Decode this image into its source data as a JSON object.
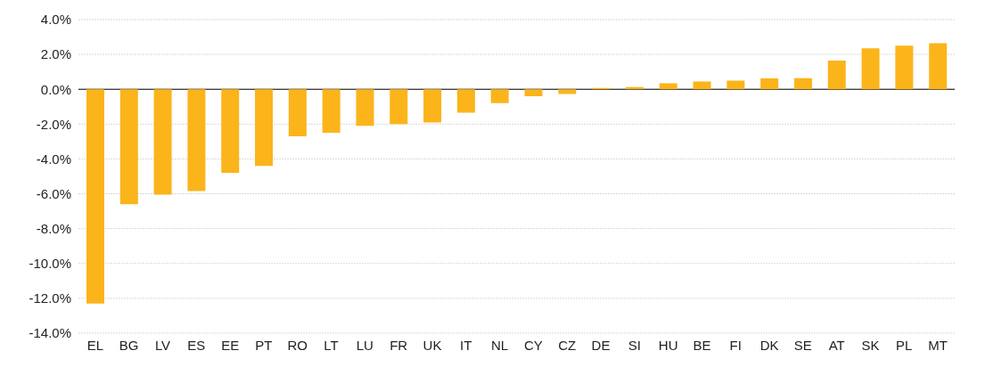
{
  "chart_data": {
    "type": "bar",
    "categories": [
      "EL",
      "BG",
      "LV",
      "ES",
      "EE",
      "PT",
      "RO",
      "LT",
      "LU",
      "FR",
      "UK",
      "IT",
      "NL",
      "CY",
      "CZ",
      "DE",
      "SI",
      "HU",
      "BE",
      "FI",
      "DK",
      "SE",
      "AT",
      "SK",
      "PL",
      "MT"
    ],
    "values": [
      -12.3,
      -6.6,
      -6.05,
      -5.85,
      -4.8,
      -4.4,
      -2.7,
      -2.5,
      -2.1,
      -2.0,
      -1.9,
      -1.35,
      -0.8,
      -0.4,
      -0.27,
      0.07,
      0.13,
      0.35,
      0.45,
      0.5,
      0.62,
      0.64,
      1.65,
      2.35,
      2.5,
      2.64
    ],
    "color": "#fbb41a",
    "ylim": [
      -14,
      4
    ],
    "yticks": [
      {
        "value": -14,
        "label": "-14.0%"
      },
      {
        "value": -12,
        "label": "-12.0%"
      },
      {
        "value": -10,
        "label": "-10.0%"
      },
      {
        "value": -8,
        "label": "-8.0%"
      },
      {
        "value": -6,
        "label": "-6.0%"
      },
      {
        "value": -4,
        "label": "-4.0%"
      },
      {
        "value": -2,
        "label": "-2.0%"
      },
      {
        "value": 0,
        "label": "0.0%"
      },
      {
        "value": 2,
        "label": "2.0%"
      },
      {
        "value": 4,
        "label": "4.0%"
      }
    ],
    "grid": "y"
  }
}
